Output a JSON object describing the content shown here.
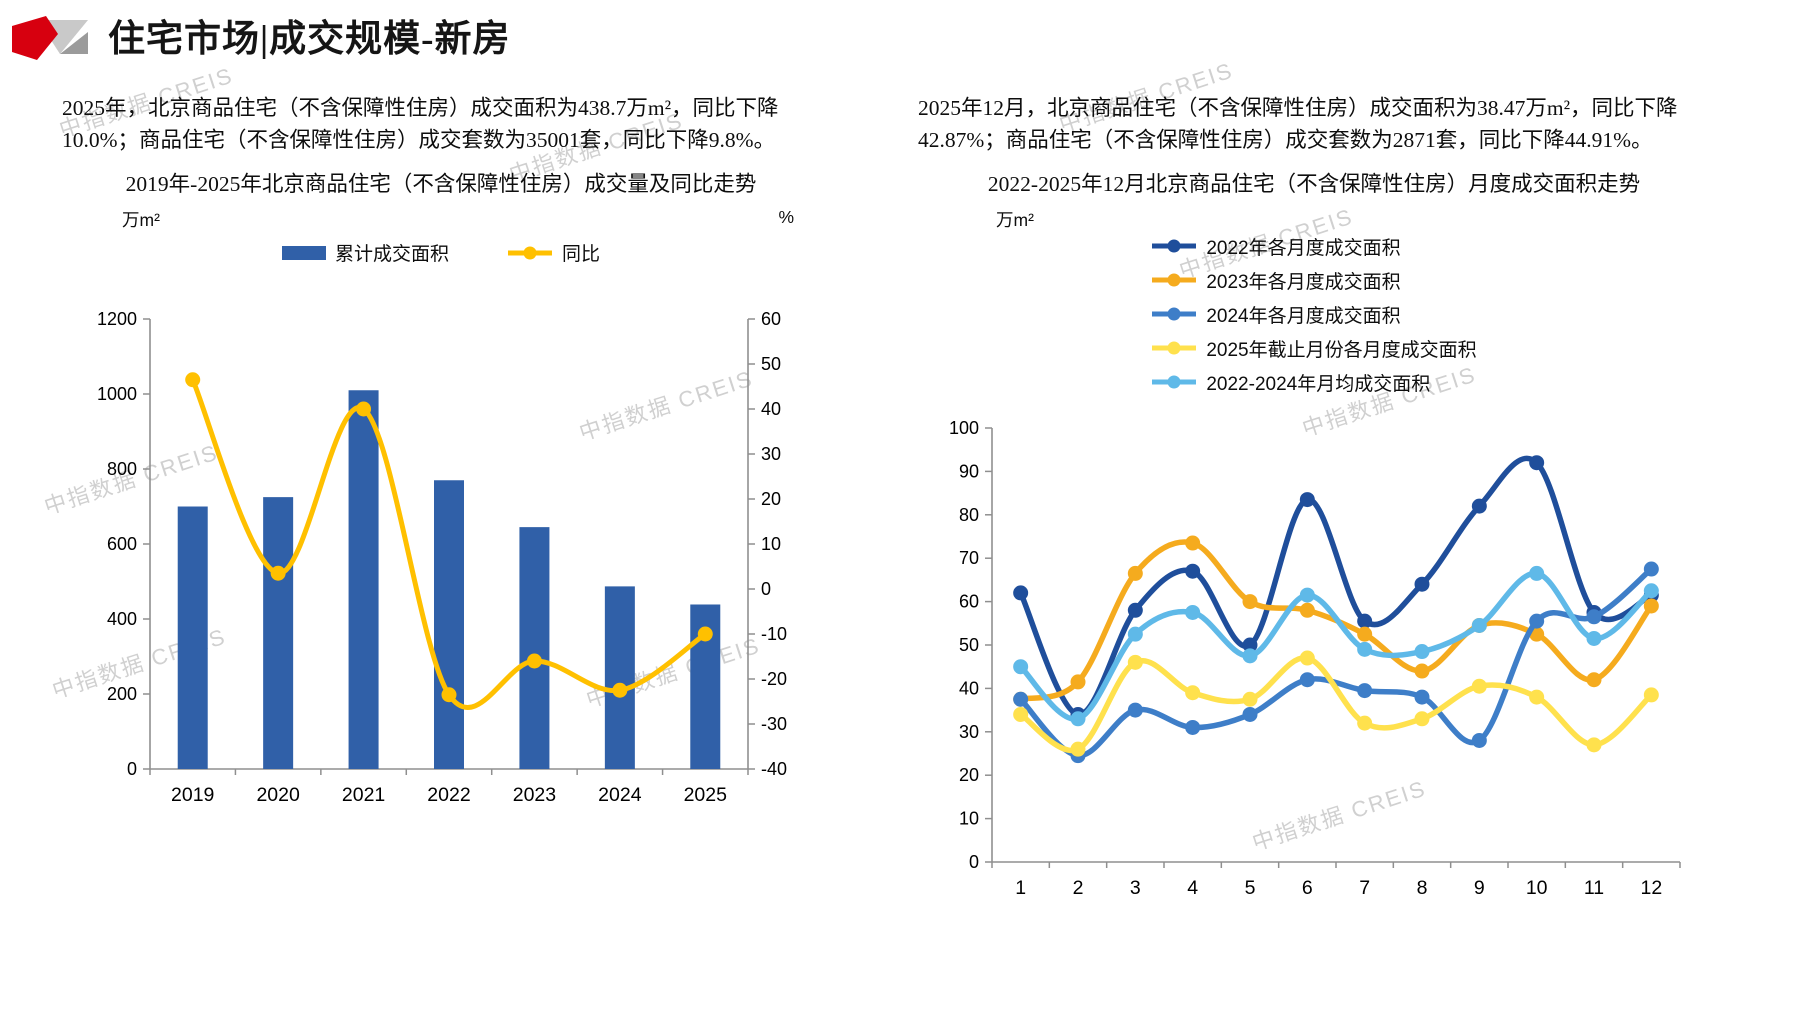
{
  "header": {
    "title": "住宅市场|成交规模-新房"
  },
  "brand": {
    "logo_red": "#D7000F",
    "logo_gray_light": "#C9C9C9",
    "logo_gray_dark": "#9B9B9B"
  },
  "watermark": {
    "text": "中指数据 CREIS"
  },
  "left_panel": {
    "paragraph": "2025年，北京商品住宅（不含保障性住房）成交面积为438.7万m²，同比下降10.0%；商品住宅（不含保障性住房）成交套数为35001套，同比下降9.8%。"
  },
  "right_panel": {
    "paragraph": "2025年12月，北京商品住宅（不含保障性住房）成交面积为38.47万m²，同比下降42.87%；商品住宅（不含保障性住房）成交套数为2871套，同比下降44.91%。"
  },
  "chart_data": [
    {
      "type": "bar",
      "title": "2019年-2025年北京商品住宅（不含保障性住房）成交量及同比走势",
      "categories": [
        "2019",
        "2020",
        "2021",
        "2022",
        "2023",
        "2024",
        "2025"
      ],
      "series": [
        {
          "name": "累计成交面积",
          "type": "bar",
          "axis": "left",
          "color": "#3060A8",
          "values": [
            700,
            725,
            1010,
            770,
            645,
            487,
            438.7
          ]
        },
        {
          "name": "同比",
          "type": "line",
          "axis": "right",
          "color": "#FFC000",
          "values": [
            46.5,
            3.5,
            40,
            -23.5,
            -16,
            -22.5,
            -10
          ]
        }
      ],
      "ylabel_left": "万m²",
      "ylim_left": [
        0,
        1200
      ],
      "ytick_left": 200,
      "ylabel_right": "%",
      "ylim_right": [
        -40,
        60
      ],
      "ytick_right": 10,
      "grid": false,
      "legend_position": "top"
    },
    {
      "type": "line",
      "title": "2022-2025年12月北京商品住宅（不含保障性住房）月度成交面积走势",
      "x": [
        1,
        2,
        3,
        4,
        5,
        6,
        7,
        8,
        9,
        10,
        11,
        12
      ],
      "series": [
        {
          "name": "2022年各月度成交面积",
          "color": "#1F4E9B",
          "values": [
            62,
            34,
            58,
            67,
            50,
            83.5,
            55.5,
            64,
            82,
            92,
            57.5,
            61.5
          ]
        },
        {
          "name": "2023年各月度成交面积",
          "color": "#F5AB1E",
          "values": [
            37.5,
            41.5,
            66.5,
            73.5,
            60,
            58,
            52.5,
            44,
            54.5,
            52.5,
            42,
            59
          ]
        },
        {
          "name": "2024年各月度成交面积",
          "color": "#3E7EC8",
          "values": [
            37.5,
            24.5,
            35,
            31,
            34,
            42,
            39.5,
            38,
            28,
            55.5,
            56.5,
            67.5
          ]
        },
        {
          "name": "2025年截止月份各月度成交面积",
          "color": "#FFE14D",
          "values": [
            34,
            26,
            46,
            39,
            37.5,
            47,
            32,
            33,
            40.5,
            38,
            27,
            38.5
          ]
        },
        {
          "name": "2022-2024年月均成交面积",
          "color": "#5FB9E8",
          "values": [
            45,
            33,
            52.5,
            57.5,
            47.5,
            61.5,
            49,
            48.5,
            54.5,
            66.5,
            51.5,
            62.5
          ]
        }
      ],
      "ylabel": "万m²",
      "ylim": [
        0,
        100
      ],
      "ytick": 10,
      "grid": false,
      "legend_position": "top"
    }
  ]
}
